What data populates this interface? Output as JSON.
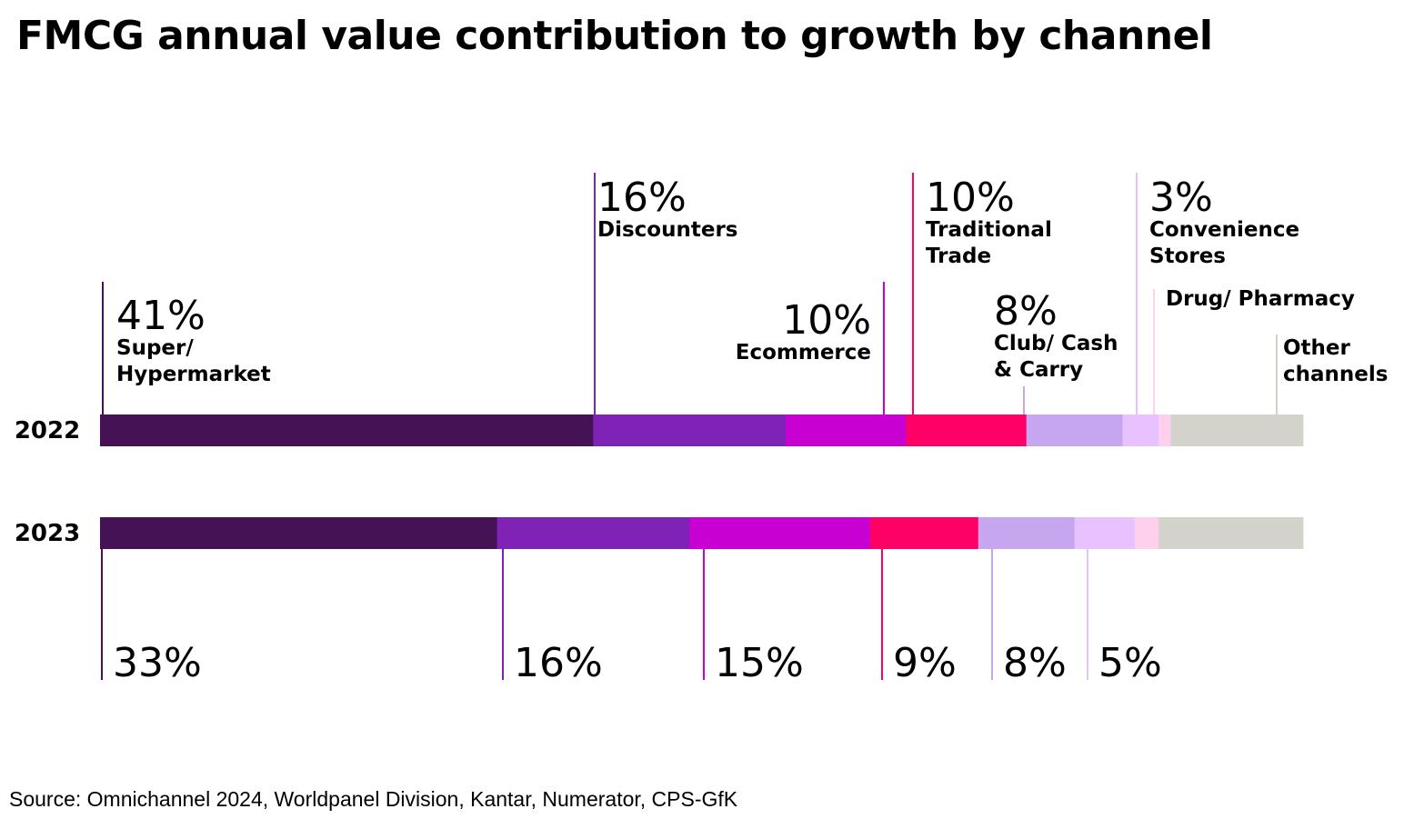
{
  "title": "FMCG annual value contribution to growth by channel",
  "source": "Source: Omnichannel 2024, Worldpanel Division, Kantar, Numerator, CPS-GfK",
  "chart_data": {
    "type": "bar",
    "orientation": "horizontal-stacked",
    "unit": "%",
    "categories": [
      "2022",
      "2023"
    ],
    "series": [
      {
        "name": "Super/ Hypermarket",
        "label_lines": [
          "Super/",
          "Hypermarket"
        ],
        "color": "#461256",
        "values": [
          41,
          33
        ],
        "labels": [
          "41%",
          "33%"
        ]
      },
      {
        "name": "Discounters",
        "label_lines": [
          "Discounters"
        ],
        "color": "#7F23B6",
        "values": [
          16,
          16
        ],
        "labels": [
          "16%",
          "16%"
        ]
      },
      {
        "name": "Ecommerce",
        "label_lines": [
          "Ecommerce"
        ],
        "color": "#C800D2",
        "values": [
          10,
          15
        ],
        "labels": [
          "10%",
          "15%"
        ]
      },
      {
        "name": "Traditional Trade",
        "label_lines": [
          "Traditional",
          "Trade"
        ],
        "color": "#FF0066",
        "values": [
          10,
          9
        ],
        "labels": [
          "10%",
          "9%"
        ]
      },
      {
        "name": "Club/ Cash & Carry",
        "label_lines": [
          "Club/ Cash",
          "& Carry"
        ],
        "color": "#C6A6EE",
        "values": [
          8,
          8
        ],
        "labels": [
          "8%",
          "8%"
        ]
      },
      {
        "name": "Convenience Stores",
        "label_lines": [
          "Convenience",
          "Stores"
        ],
        "color": "#E8C2FF",
        "values": [
          3,
          5
        ],
        "labels": [
          "3%",
          "5%"
        ]
      },
      {
        "name": "Drug/ Pharmacy",
        "label_lines": [
          "Drug/ Pharmacy"
        ],
        "color": "#FFD0EE",
        "values": [
          1,
          2
        ],
        "labels": [
          "",
          ""
        ]
      },
      {
        "name": "Other channels",
        "label_lines": [
          "Other",
          "channels"
        ],
        "color": "#D4D3CB",
        "values": [
          11,
          12
        ],
        "labels": [
          "",
          ""
        ]
      }
    ],
    "xlim": [
      0,
      100
    ],
    "grid": false,
    "legend": "none"
  }
}
